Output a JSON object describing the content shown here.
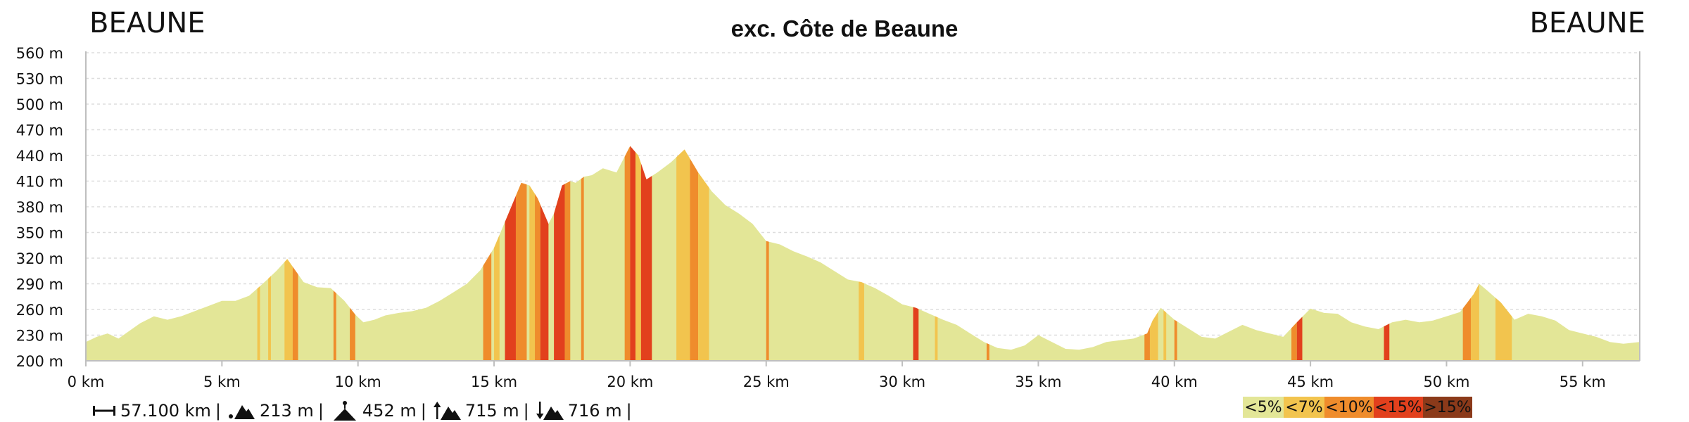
{
  "title": "exc. Côte de Beaune",
  "start_label": "BEAUNE",
  "end_label": "BEAUNE",
  "stats": {
    "distance": "57.100 km",
    "min_elevation": "213 m",
    "max_elevation": "452 m",
    "total_ascent": "715 m",
    "total_descent": "716 m",
    "separator": "|"
  },
  "colors": {
    "lt5": "#e3e697",
    "lt7": "#f2c44e",
    "lt10": "#ef8c2c",
    "lt15": "#e2401d",
    "gt15": "#8b3a1a",
    "grid": "#dddddd",
    "axis": "#bfbfbf"
  },
  "legend": [
    {
      "label": "<5%",
      "color": "#e3e697"
    },
    {
      "label": "<7%",
      "color": "#f2c44e"
    },
    {
      "label": "<10%",
      "color": "#ef8c2c"
    },
    {
      "label": "<15%",
      "color": "#e2401d"
    },
    {
      "label": ">15%",
      "color": "#8b3a1a"
    }
  ],
  "chart_data": {
    "type": "area",
    "title": "exc. Côte de Beaune",
    "xlabel": "",
    "ylabel": "",
    "xlim": [
      0,
      57.1
    ],
    "ylim": [
      200,
      560
    ],
    "grid": true,
    "legend_position": "bottom-right",
    "x_ticks": [
      "0 km",
      "5 km",
      "10 km",
      "15 km",
      "20 km",
      "25 km",
      "30 km",
      "35 km",
      "40 km",
      "45 km",
      "50 km",
      "55 km"
    ],
    "x_tick_values": [
      0,
      5,
      10,
      15,
      20,
      25,
      30,
      35,
      40,
      45,
      50,
      55
    ],
    "y_ticks": [
      "200 m",
      "230 m",
      "260 m",
      "290 m",
      "320 m",
      "350 m",
      "380 m",
      "410 m",
      "440 m",
      "470 m",
      "500 m",
      "530 m",
      "560 m"
    ],
    "y_tick_values": [
      200,
      230,
      260,
      290,
      320,
      350,
      380,
      410,
      440,
      470,
      500,
      530,
      560
    ],
    "series": [
      {
        "x": [
          0,
          0.4,
          0.8,
          1.2,
          1.6,
          2.0,
          2.5,
          3.0,
          3.5,
          4.0,
          4.5,
          5.0,
          5.5,
          6.0,
          6.5,
          7.0,
          7.4,
          7.6,
          8.0,
          8.5,
          9.0,
          9.5,
          9.9,
          10.2,
          10.6,
          11.0,
          11.5,
          12.0,
          12.5,
          13.0,
          13.5,
          14.0,
          14.5,
          15.0,
          15.5,
          16.0,
          16.3,
          16.6,
          17.0,
          17.2,
          17.5,
          17.8,
          18.0,
          18.3,
          18.6,
          19.0,
          19.5,
          20.0,
          20.3,
          20.6,
          21.0,
          21.5,
          22.0,
          22.5,
          23.0,
          23.5,
          24.0,
          24.5,
          25.0,
          25.5,
          26.0,
          26.5,
          27.0,
          27.5,
          28.0,
          28.5,
          29.0,
          29.5,
          30.0,
          30.5,
          31.0,
          31.5,
          32.0,
          32.5,
          33.0,
          33.5,
          34.0,
          34.5,
          35.0,
          35.5,
          36.0,
          36.5,
          37.0,
          37.5,
          38.0,
          38.5,
          39.0,
          39.2,
          39.5,
          40.0,
          40.5,
          41.0,
          41.5,
          42.0,
          42.5,
          43.0,
          43.5,
          44.0,
          44.5,
          45.0,
          45.5,
          46.0,
          46.5,
          47.0,
          47.5,
          48.0,
          48.5,
          49.0,
          49.5,
          50.0,
          50.5,
          51.0,
          51.2,
          51.5,
          52.0,
          52.5,
          53.0,
          53.5,
          54.0,
          54.5,
          55.0,
          55.5,
          56.0,
          56.5,
          57.1
        ],
        "y": [
          222,
          228,
          232,
          226,
          235,
          244,
          252,
          248,
          252,
          258,
          264,
          270,
          270,
          276,
          290,
          305,
          319,
          310,
          292,
          286,
          285,
          270,
          254,
          245,
          248,
          253,
          256,
          258,
          262,
          270,
          280,
          290,
          306,
          332,
          370,
          408,
          405,
          390,
          360,
          372,
          405,
          410,
          408,
          415,
          417,
          425,
          420,
          451,
          440,
          412,
          420,
          432,
          447,
          420,
          398,
          382,
          372,
          360,
          340,
          336,
          328,
          322,
          315,
          305,
          295,
          292,
          285,
          276,
          266,
          262,
          255,
          248,
          242,
          232,
          222,
          215,
          213,
          218,
          230,
          222,
          214,
          213,
          216,
          222,
          224,
          226,
          232,
          247,
          262,
          248,
          238,
          228,
          226,
          234,
          242,
          236,
          232,
          228,
          245,
          261,
          256,
          255,
          245,
          240,
          237,
          245,
          248,
          245,
          247,
          252,
          257,
          278,
          290,
          282,
          268,
          248,
          255,
          252,
          247,
          236,
          232,
          228,
          222,
          220,
          222
        ]
      }
    ],
    "gradient_segments": [
      {
        "from": 6.3,
        "to": 6.4,
        "class": "<7%"
      },
      {
        "from": 6.7,
        "to": 6.8,
        "class": "<7%"
      },
      {
        "from": 7.3,
        "to": 7.6,
        "class": "<7%"
      },
      {
        "from": 7.6,
        "to": 7.8,
        "class": "<10%"
      },
      {
        "from": 9.1,
        "to": 9.2,
        "class": "<10%"
      },
      {
        "from": 9.7,
        "to": 9.9,
        "class": "<10%"
      },
      {
        "from": 14.6,
        "to": 14.9,
        "class": "<10%"
      },
      {
        "from": 15.0,
        "to": 15.2,
        "class": "<7%"
      },
      {
        "from": 15.4,
        "to": 15.8,
        "class": "<15%"
      },
      {
        "from": 15.8,
        "to": 16.2,
        "class": "<10%"
      },
      {
        "from": 16.3,
        "to": 16.5,
        "class": "<7%"
      },
      {
        "from": 16.5,
        "to": 16.7,
        "class": "<10%"
      },
      {
        "from": 16.7,
        "to": 17.0,
        "class": "<15%"
      },
      {
        "from": 17.2,
        "to": 17.6,
        "class": "<15%"
      },
      {
        "from": 17.6,
        "to": 17.8,
        "class": "<10%"
      },
      {
        "from": 18.2,
        "to": 18.3,
        "class": "<10%"
      },
      {
        "from": 19.8,
        "to": 20.0,
        "class": "<10%"
      },
      {
        "from": 20.0,
        "to": 20.2,
        "class": "<15%"
      },
      {
        "from": 20.2,
        "to": 20.4,
        "class": "<7%"
      },
      {
        "from": 20.4,
        "to": 20.8,
        "class": "<15%"
      },
      {
        "from": 21.7,
        "to": 22.2,
        "class": "<7%"
      },
      {
        "from": 22.2,
        "to": 22.5,
        "class": "<10%"
      },
      {
        "from": 22.5,
        "to": 22.9,
        "class": "<7%"
      },
      {
        "from": 25.0,
        "to": 25.1,
        "class": "<10%"
      },
      {
        "from": 28.4,
        "to": 28.6,
        "class": "<7%"
      },
      {
        "from": 30.4,
        "to": 30.6,
        "class": "<15%"
      },
      {
        "from": 31.2,
        "to": 31.3,
        "class": "<7%"
      },
      {
        "from": 33.1,
        "to": 33.2,
        "class": "<10%"
      },
      {
        "from": 38.9,
        "to": 39.1,
        "class": "<10%"
      },
      {
        "from": 39.1,
        "to": 39.4,
        "class": "<7%"
      },
      {
        "from": 39.6,
        "to": 39.7,
        "class": "<7%"
      },
      {
        "from": 40.0,
        "to": 40.1,
        "class": "<10%"
      },
      {
        "from": 44.3,
        "to": 44.5,
        "class": "<10%"
      },
      {
        "from": 44.5,
        "to": 44.7,
        "class": "<15%"
      },
      {
        "from": 47.7,
        "to": 47.9,
        "class": "<15%"
      },
      {
        "from": 50.6,
        "to": 50.9,
        "class": "<10%"
      },
      {
        "from": 50.9,
        "to": 51.2,
        "class": "<7%"
      },
      {
        "from": 51.8,
        "to": 52.4,
        "class": "<7%"
      }
    ]
  }
}
